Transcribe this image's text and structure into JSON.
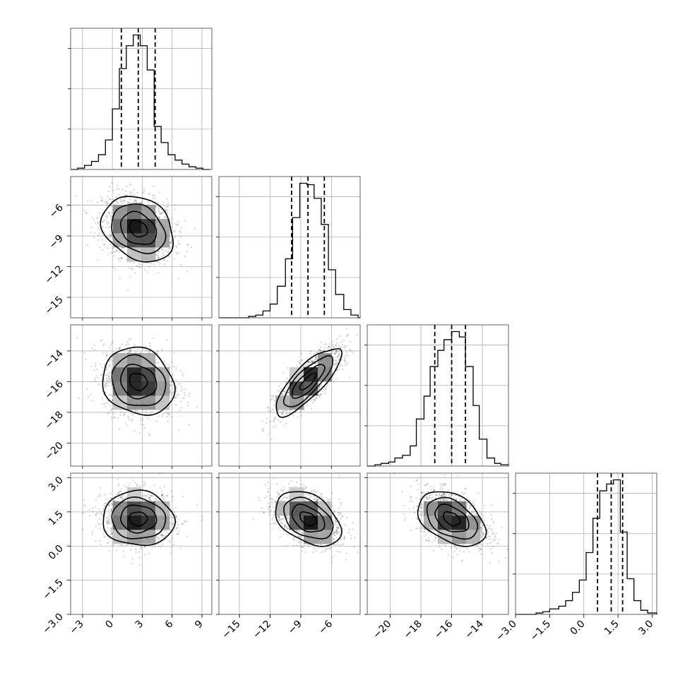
{
  "chart_data": {
    "type": "corner",
    "grid": true,
    "parameters": [
      {
        "index": 0,
        "range": [
          -4.2,
          10.0
        ],
        "ticks": [
          -3,
          0,
          3,
          6,
          9
        ],
        "tick_labels": [
          "−3",
          "0",
          "3",
          "6",
          "9"
        ],
        "quantiles": [
          0.9,
          2.6,
          4.3
        ],
        "histogram": {
          "bins": [
            [
              -4.2,
              -3.5,
              0
            ],
            [
              -3.5,
              -2.8,
              1
            ],
            [
              -2.8,
              -2.1,
              3
            ],
            [
              -2.1,
              -1.4,
              6
            ],
            [
              -1.4,
              -0.7,
              11
            ],
            [
              -0.7,
              0.0,
              22
            ],
            [
              0.0,
              0.7,
              45
            ],
            [
              0.7,
              1.4,
              75
            ],
            [
              1.4,
              2.1,
              92
            ],
            [
              2.1,
              2.8,
              100
            ],
            [
              2.8,
              3.5,
              92
            ],
            [
              3.5,
              4.2,
              74
            ],
            [
              4.2,
              4.9,
              32
            ],
            [
              4.9,
              5.6,
              20
            ],
            [
              5.6,
              6.3,
              11
            ],
            [
              6.3,
              7.0,
              7
            ],
            [
              7.0,
              7.7,
              4
            ],
            [
              7.7,
              8.4,
              2
            ],
            [
              8.4,
              9.1,
              1
            ],
            [
              9.1,
              9.8,
              0
            ]
          ]
        }
      },
      {
        "index": 1,
        "range": [
          -17.0,
          -3.2
        ],
        "ticks": [
          -15,
          -12,
          -9,
          -6
        ],
        "tick_labels": [
          "−15",
          "−12",
          "−9",
          "−6"
        ],
        "quantiles": [
          -9.9,
          -8.3,
          -6.7
        ],
        "histogram": {
          "bins": [
            [
              -17.0,
              -16.3,
              0
            ],
            [
              -16.3,
              -15.5,
              0
            ],
            [
              -15.5,
              -14.8,
              0
            ],
            [
              -14.8,
              -14.1,
              0
            ],
            [
              -14.1,
              -13.4,
              1
            ],
            [
              -13.4,
              -12.7,
              2
            ],
            [
              -12.7,
              -12.0,
              5
            ],
            [
              -12.0,
              -11.3,
              10
            ],
            [
              -11.3,
              -10.5,
              23
            ],
            [
              -10.5,
              -9.8,
              43
            ],
            [
              -9.8,
              -9.1,
              73
            ],
            [
              -9.1,
              -8.4,
              98
            ],
            [
              -8.4,
              -7.7,
              97
            ],
            [
              -7.7,
              -7.0,
              87
            ],
            [
              -7.0,
              -6.3,
              68
            ],
            [
              -6.3,
              -5.6,
              35
            ],
            [
              -5.6,
              -4.8,
              17
            ],
            [
              -4.8,
              -4.1,
              6
            ],
            [
              -4.1,
              -3.4,
              2
            ],
            [
              -3.4,
              -3.2,
              0
            ]
          ]
        }
      },
      {
        "index": 2,
        "range": [
          -21.5,
          -12.3
        ],
        "ticks": [
          -20,
          -18,
          -16,
          -14
        ],
        "tick_labels": [
          "−20",
          "−18",
          "−16",
          "−14"
        ],
        "quantiles": [
          -17.1,
          -16.0,
          -15.1
        ],
        "histogram": {
          "bins": [
            [
              -21.5,
              -21.0,
              0
            ],
            [
              -21.0,
              -20.6,
              1
            ],
            [
              -20.6,
              -20.1,
              2
            ],
            [
              -20.1,
              -19.7,
              3
            ],
            [
              -19.7,
              -19.2,
              6
            ],
            [
              -19.2,
              -18.7,
              8
            ],
            [
              -18.7,
              -18.3,
              15
            ],
            [
              -18.3,
              -17.8,
              35
            ],
            [
              -17.8,
              -17.4,
              52
            ],
            [
              -17.4,
              -16.9,
              74
            ],
            [
              -16.9,
              -16.5,
              86
            ],
            [
              -16.5,
              -16.0,
              94
            ],
            [
              -16.0,
              -15.5,
              100
            ],
            [
              -15.5,
              -15.1,
              96
            ],
            [
              -15.1,
              -14.6,
              74
            ],
            [
              -14.6,
              -14.2,
              45
            ],
            [
              -14.2,
              -13.7,
              20
            ],
            [
              -13.7,
              -13.2,
              6
            ],
            [
              -13.2,
              -12.8,
              2
            ],
            [
              -12.8,
              -12.3,
              1
            ]
          ]
        }
      },
      {
        "index": 3,
        "range": [
          -3.0,
          3.2
        ],
        "ticks": [
          -3.0,
          -1.5,
          0.0,
          1.5,
          3.0
        ],
        "tick_labels": [
          "−3.0",
          "−1.5",
          "0.0",
          "1.5",
          "3.0"
        ],
        "quantiles": [
          0.6,
          1.2,
          1.7
        ],
        "histogram": {
          "bins": [
            [
              -3.0,
              -2.7,
              0
            ],
            [
              -2.7,
              -2.4,
              0
            ],
            [
              -2.4,
              -2.1,
              0
            ],
            [
              -2.1,
              -1.8,
              1
            ],
            [
              -1.8,
              -1.5,
              2
            ],
            [
              -1.5,
              -1.1,
              4
            ],
            [
              -1.1,
              -0.8,
              6
            ],
            [
              -0.8,
              -0.5,
              10
            ],
            [
              -0.5,
              -0.2,
              16
            ],
            [
              -0.2,
              0.1,
              25
            ],
            [
              0.1,
              0.4,
              45
            ],
            [
              0.4,
              0.7,
              70
            ],
            [
              0.7,
              1.0,
              90
            ],
            [
              1.0,
              1.3,
              95
            ],
            [
              1.3,
              1.6,
              98
            ],
            [
              1.6,
              1.9,
              60
            ],
            [
              1.9,
              2.2,
              26
            ],
            [
              2.2,
              2.5,
              10
            ],
            [
              2.5,
              2.8,
              3
            ],
            [
              2.8,
              3.2,
              1
            ]
          ]
        }
      }
    ],
    "pairs": [
      {
        "x": 0,
        "y": 1,
        "center": [
          2.6,
          -8.3
        ],
        "sigma": [
          1.8,
          1.6
        ],
        "correlation": -0.25
      },
      {
        "x": 0,
        "y": 2,
        "center": [
          2.6,
          -16.0
        ],
        "sigma": [
          1.8,
          1.1
        ],
        "correlation": -0.15
      },
      {
        "x": 1,
        "y": 2,
        "center": [
          -8.3,
          -16.0
        ],
        "sigma": [
          1.6,
          1.1
        ],
        "correlation": 0.8
      },
      {
        "x": 0,
        "y": 3,
        "center": [
          2.6,
          1.2
        ],
        "sigma": [
          1.8,
          0.6
        ],
        "correlation": -0.05
      },
      {
        "x": 1,
        "y": 3,
        "center": [
          -8.3,
          1.2
        ],
        "sigma": [
          1.6,
          0.6
        ],
        "correlation": -0.4
      },
      {
        "x": 2,
        "y": 3,
        "center": [
          -16.0,
          1.2
        ],
        "sigma": [
          1.1,
          0.6
        ],
        "correlation": -0.4
      }
    ],
    "contour_levels_sigma": [
      0.5,
      1.0,
      1.5,
      2.0
    ]
  }
}
